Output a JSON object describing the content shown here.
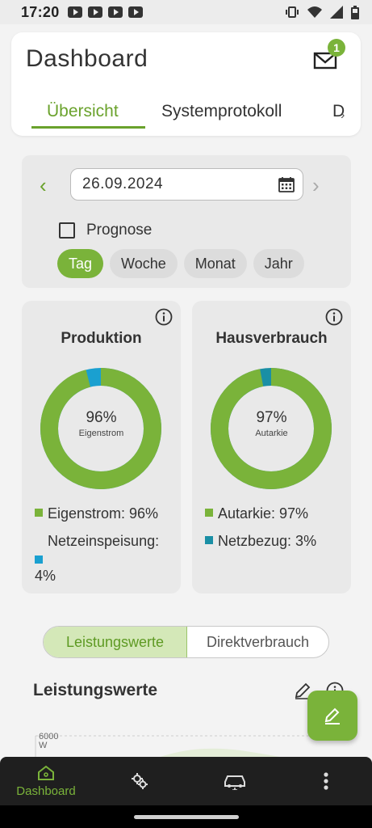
{
  "status_bar": {
    "time": "17:20"
  },
  "header": {
    "title": "Dashboard",
    "notification_count": "1",
    "tabs": [
      {
        "label": "Übersicht",
        "active": true
      },
      {
        "label": "Systemprotokoll",
        "active": false
      },
      {
        "label": "D",
        "active": false
      }
    ]
  },
  "filters": {
    "date": "26.09.2024",
    "prognose_label": "Prognose",
    "prognose_checked": false,
    "periods": [
      {
        "label": "Tag",
        "active": true
      },
      {
        "label": "Woche",
        "active": false
      },
      {
        "label": "Monat",
        "active": false
      },
      {
        "label": "Jahr",
        "active": false
      }
    ]
  },
  "production": {
    "title": "Produktion",
    "percent_label": "96%",
    "center_sub": "Eigenstrom",
    "legend_1": "Eigenstrom: 96%",
    "legend_2a": "Netzeinspeisung:",
    "legend_2b": "4%",
    "fraction_main": 0.96,
    "color_main": "#7ab33a",
    "color_secondary": "#1aa0d0"
  },
  "consumption": {
    "title": "Hausverbrauch",
    "percent_label": "97%",
    "center_sub": "Autarkie",
    "legend_1": "Autarkie: 97%",
    "legend_2": "Netzbezug: 3%",
    "fraction_main": 0.97,
    "color_main": "#7ab33a",
    "color_secondary": "#1a8fa5"
  },
  "toggle": {
    "left": "Leistungswerte",
    "right": "Direktverbrauch"
  },
  "section": {
    "title": "Leistungswerte",
    "axis_max": "6000",
    "axis_unit": "W"
  },
  "bottom_nav": {
    "dashboard_label": "Dashboard"
  }
}
